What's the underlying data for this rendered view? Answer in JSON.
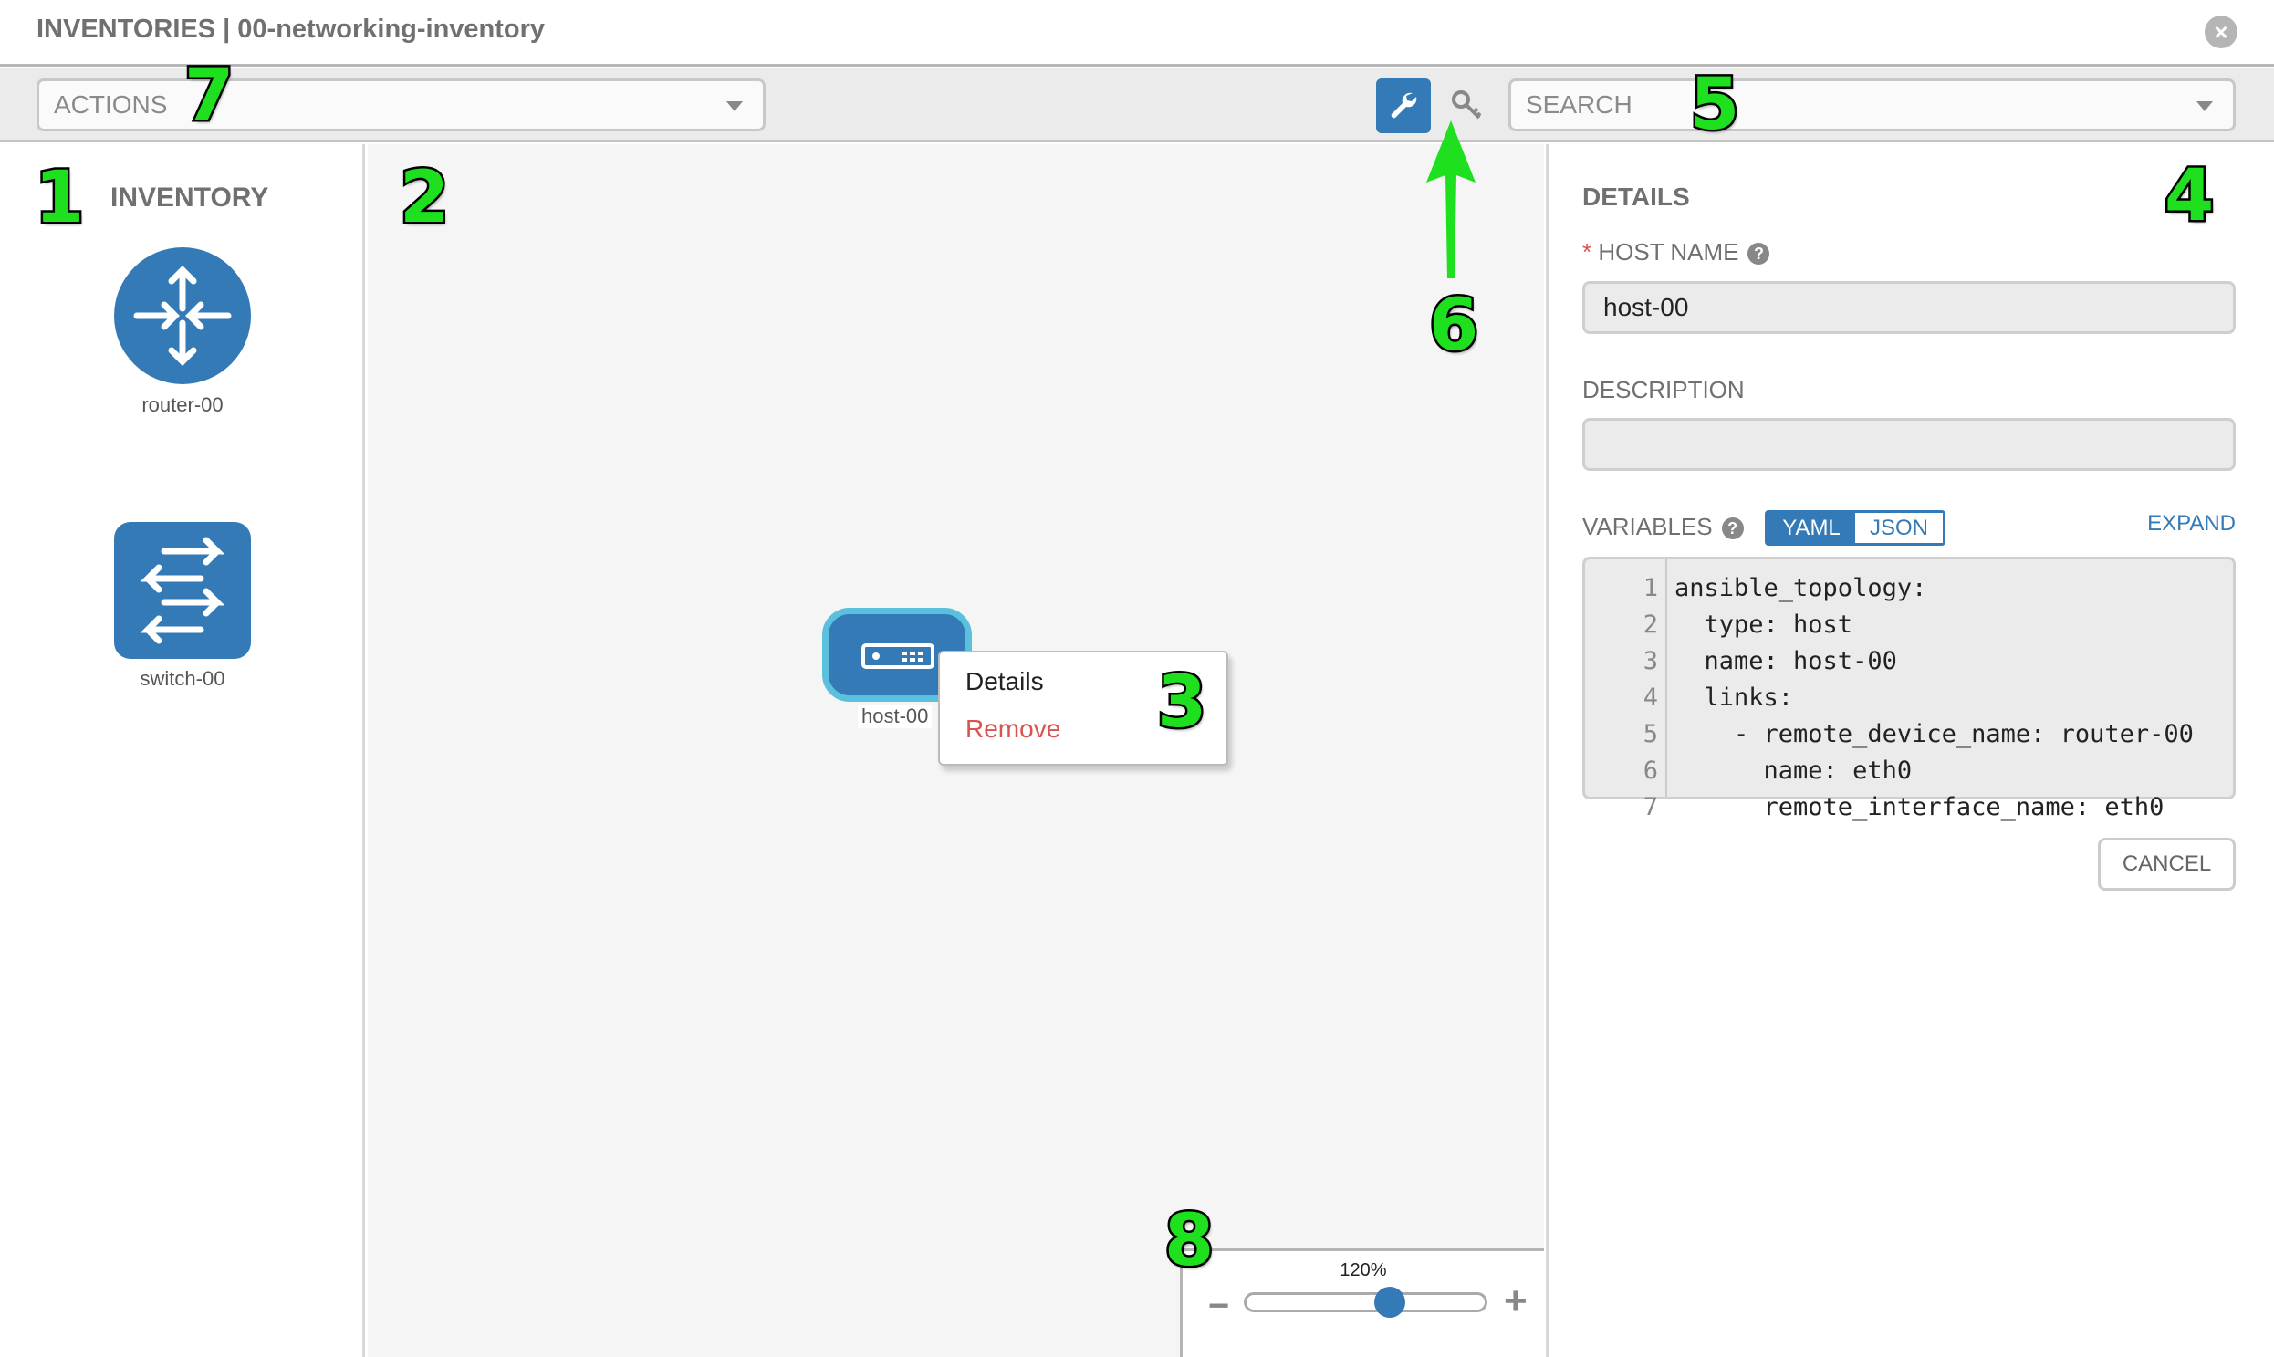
{
  "window": {
    "title": "INVENTORIES | 00-networking-inventory",
    "close_icon": "close-circle-icon"
  },
  "toolbar": {
    "actions_placeholder": "ACTIONS",
    "search_placeholder": "SEARCH",
    "mode_buttons": [
      {
        "icon": "wrench-icon",
        "active": true
      },
      {
        "icon": "key-icon",
        "active": false
      }
    ]
  },
  "inventory": {
    "title": "INVENTORY",
    "devices": [
      {
        "label": "router-00",
        "icon": "router-icon"
      },
      {
        "label": "switch-00",
        "icon": "switch-icon"
      }
    ]
  },
  "canvas": {
    "node": {
      "label": "host-00",
      "icon": "host-icon"
    },
    "context_menu": {
      "details": "Details",
      "remove": "Remove"
    },
    "zoom": {
      "label": "120%",
      "level_fraction": 0.6,
      "minus": "−",
      "plus": "+"
    }
  },
  "details": {
    "title": "DETAILS",
    "host_name_label": "HOST NAME",
    "required_mark": "*",
    "host_name_value": "host-00",
    "description_label": "DESCRIPTION",
    "description_value": "",
    "variables_label": "VARIABLES",
    "format_yaml": "YAML",
    "format_json": "JSON",
    "expand": "EXPAND",
    "line_numbers": [
      "1",
      "2",
      "3",
      "4",
      "5",
      "6",
      "7"
    ],
    "code_lines": [
      "ansible_topology:",
      "  type: host",
      "  name: host-00",
      "  links:",
      "    - remote_device_name: router-00",
      "      name: eth0",
      "      remote_interface_name: eth0"
    ],
    "cancel": "CANCEL"
  },
  "annotations": [
    "1",
    "2",
    "3",
    "4",
    "5",
    "6",
    "7",
    "8"
  ],
  "colors": {
    "accent": "#337ab7",
    "selection": "#5bc0de",
    "danger": "#d9534f",
    "annotation": "#1ee01e"
  }
}
